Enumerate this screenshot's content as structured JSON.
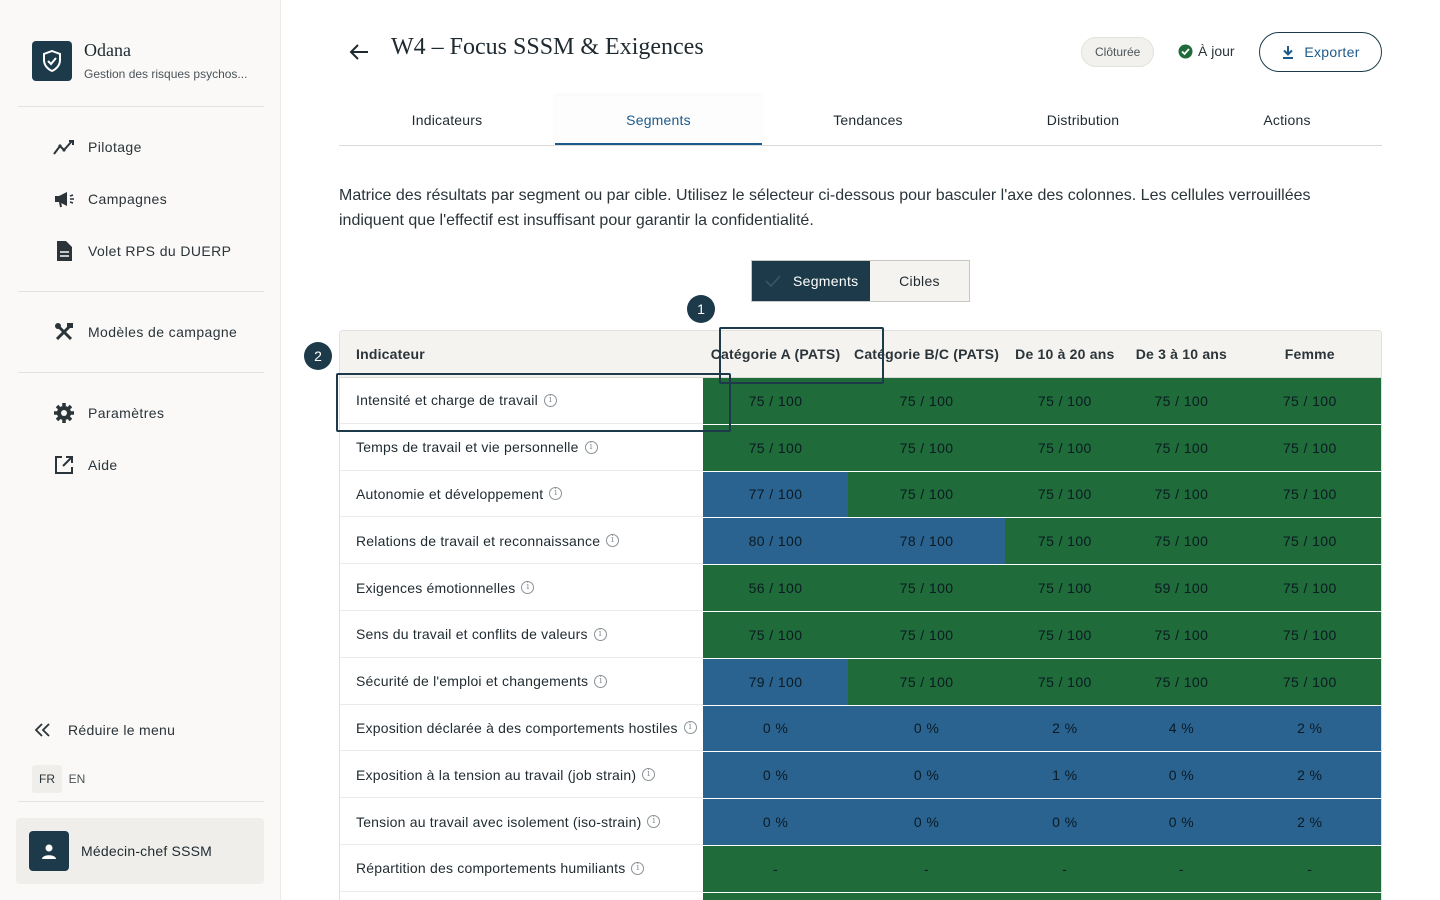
{
  "brand": {
    "name": "Odana",
    "subtitle": "Gestion des risques psychos..."
  },
  "sidebar": {
    "items": [
      {
        "label": "Pilotage",
        "icon": "chart-line-icon"
      },
      {
        "label": "Campagnes",
        "icon": "megaphone-icon"
      },
      {
        "label": "Volet RPS du DUERP",
        "icon": "document-icon"
      },
      {
        "label": "Modèles de campagne",
        "icon": "tools-icon"
      },
      {
        "label": "Paramètres",
        "icon": "gear-icon"
      },
      {
        "label": "Aide",
        "icon": "external-link-icon"
      }
    ],
    "collapse_label": "Réduire le menu",
    "languages": [
      "FR",
      "EN"
    ],
    "active_language": "FR",
    "user": "Médecin-chef SSSM"
  },
  "header": {
    "title": "W4 – Focus SSSM & Exigences",
    "badge": "Clôturée",
    "status": "À jour",
    "export_label": "Exporter"
  },
  "tabs": [
    "Indicateurs",
    "Segments",
    "Tendances",
    "Distribution",
    "Actions"
  ],
  "active_tab": "Segments",
  "intro": "Matrice des résultats par segment ou par cible. Utilisez le sélecteur ci-dessous pour basculer l'axe des colonnes. Les cellules verrouillées indiquent que l'effectif est insuffisant pour garantir la confidentialité.",
  "toggle": {
    "on": "Segments",
    "off": "Cibles"
  },
  "steps": [
    "1",
    "2"
  ],
  "colors": {
    "green": "#1f6b3a",
    "blue": "#2a6390",
    "navy": "#1c3a4a"
  },
  "table": {
    "header_indicator": "Indicateur",
    "columns": [
      "Catégorie A (PATS)",
      "Catégorie B/C (PATS)",
      "De 10 à 20 ans",
      "De 3 à 10 ans",
      "Femme"
    ],
    "rows": [
      {
        "label": "Intensité et charge de travail",
        "cells": [
          {
            "v": "75 / 100",
            "c": "green"
          },
          {
            "v": "75 / 100",
            "c": "green"
          },
          {
            "v": "75 / 100",
            "c": "green"
          },
          {
            "v": "75 / 100",
            "c": "green"
          },
          {
            "v": "75 / 100",
            "c": "green"
          }
        ]
      },
      {
        "label": "Temps de travail et vie personnelle",
        "cells": [
          {
            "v": "75 / 100",
            "c": "green"
          },
          {
            "v": "75 / 100",
            "c": "green"
          },
          {
            "v": "75 / 100",
            "c": "green"
          },
          {
            "v": "75 / 100",
            "c": "green"
          },
          {
            "v": "75 / 100",
            "c": "green"
          }
        ]
      },
      {
        "label": "Autonomie et développement",
        "cells": [
          {
            "v": "77 / 100",
            "c": "blue"
          },
          {
            "v": "75 / 100",
            "c": "green"
          },
          {
            "v": "75 / 100",
            "c": "green"
          },
          {
            "v": "75 / 100",
            "c": "green"
          },
          {
            "v": "75 / 100",
            "c": "green"
          }
        ]
      },
      {
        "label": "Relations de travail et reconnaissance",
        "cells": [
          {
            "v": "80 / 100",
            "c": "blue"
          },
          {
            "v": "78 / 100",
            "c": "blue"
          },
          {
            "v": "75 / 100",
            "c": "green"
          },
          {
            "v": "75 / 100",
            "c": "green"
          },
          {
            "v": "75 / 100",
            "c": "green"
          }
        ]
      },
      {
        "label": "Exigences émotionnelles",
        "cells": [
          {
            "v": "56 / 100",
            "c": "green"
          },
          {
            "v": "75 / 100",
            "c": "green"
          },
          {
            "v": "75 / 100",
            "c": "green"
          },
          {
            "v": "59 / 100",
            "c": "green"
          },
          {
            "v": "75 / 100",
            "c": "green"
          }
        ]
      },
      {
        "label": "Sens du travail et conflits de valeurs",
        "cells": [
          {
            "v": "75 / 100",
            "c": "green"
          },
          {
            "v": "75 / 100",
            "c": "green"
          },
          {
            "v": "75 / 100",
            "c": "green"
          },
          {
            "v": "75 / 100",
            "c": "green"
          },
          {
            "v": "75 / 100",
            "c": "green"
          }
        ]
      },
      {
        "label": "Sécurité de l'emploi et changements",
        "cells": [
          {
            "v": "79 / 100",
            "c": "blue"
          },
          {
            "v": "75 / 100",
            "c": "green"
          },
          {
            "v": "75 / 100",
            "c": "green"
          },
          {
            "v": "75 / 100",
            "c": "green"
          },
          {
            "v": "75 / 100",
            "c": "green"
          }
        ]
      },
      {
        "label": "Exposition déclarée à des comportements hostiles",
        "cells": [
          {
            "v": "0 %",
            "c": "blue"
          },
          {
            "v": "0 %",
            "c": "blue"
          },
          {
            "v": "2 %",
            "c": "blue"
          },
          {
            "v": "4 %",
            "c": "blue"
          },
          {
            "v": "2 %",
            "c": "blue"
          }
        ]
      },
      {
        "label": "Exposition à la tension au travail (job strain)",
        "cells": [
          {
            "v": "0 %",
            "c": "blue"
          },
          {
            "v": "0 %",
            "c": "blue"
          },
          {
            "v": "1 %",
            "c": "blue"
          },
          {
            "v": "0 %",
            "c": "blue"
          },
          {
            "v": "2 %",
            "c": "blue"
          }
        ]
      },
      {
        "label": "Tension au travail avec isolement (iso-strain)",
        "cells": [
          {
            "v": "0 %",
            "c": "blue"
          },
          {
            "v": "0 %",
            "c": "blue"
          },
          {
            "v": "0 %",
            "c": "blue"
          },
          {
            "v": "0 %",
            "c": "blue"
          },
          {
            "v": "2 %",
            "c": "blue"
          }
        ]
      },
      {
        "label": "Répartition des comportements humiliants",
        "cells": [
          {
            "v": "-",
            "c": "green"
          },
          {
            "v": "-",
            "c": "green"
          },
          {
            "v": "-",
            "c": "green"
          },
          {
            "v": "-",
            "c": "green"
          },
          {
            "v": "-",
            "c": "green"
          }
        ]
      },
      {
        "label": "",
        "cells": [
          {
            "v": "",
            "c": "green"
          },
          {
            "v": "",
            "c": "green"
          },
          {
            "v": "",
            "c": "green"
          },
          {
            "v": "",
            "c": "green"
          },
          {
            "v": "",
            "c": "green"
          }
        ]
      }
    ]
  }
}
